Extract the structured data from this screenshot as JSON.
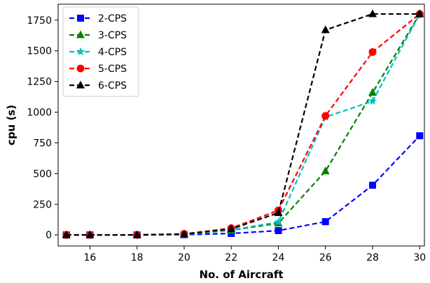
{
  "chart_data": {
    "type": "line",
    "xlabel": "No. of Aircraft",
    "ylabel": "cpu (s)",
    "x": [
      15,
      16,
      18,
      20,
      22,
      24,
      26,
      28,
      30
    ],
    "xticks": [
      16,
      18,
      20,
      22,
      24,
      26,
      28,
      30
    ],
    "yticks": [
      0,
      250,
      500,
      750,
      1000,
      1250,
      1500,
      1750
    ],
    "xlim": [
      14.65,
      30.2
    ],
    "ylim": [
      -90,
      1880
    ],
    "grid": false,
    "legend_position": "top-left",
    "series": [
      {
        "name": "2-CPS",
        "color": "#0000ff",
        "marker": "square",
        "values": [
          0,
          0,
          0,
          2,
          12,
          35,
          108,
          405,
          808
        ]
      },
      {
        "name": "3-CPS",
        "color": "#008000",
        "marker": "triangle",
        "values": [
          0,
          0,
          0,
          4,
          38,
          95,
          520,
          1160,
          1800
        ]
      },
      {
        "name": "4-CPS",
        "color": "#00bfbf",
        "marker": "star",
        "values": [
          0,
          0,
          0,
          5,
          40,
          105,
          960,
          1090,
          1800
        ]
      },
      {
        "name": "5-CPS",
        "color": "#ff0000",
        "marker": "circle",
        "values": [
          0,
          0,
          0,
          8,
          55,
          200,
          970,
          1490,
          1800
        ]
      },
      {
        "name": "6-CPS",
        "color": "#000000",
        "marker": "triangle",
        "values": [
          0,
          0,
          0,
          7,
          48,
          180,
          1670,
          1800,
          1800
        ]
      }
    ]
  }
}
